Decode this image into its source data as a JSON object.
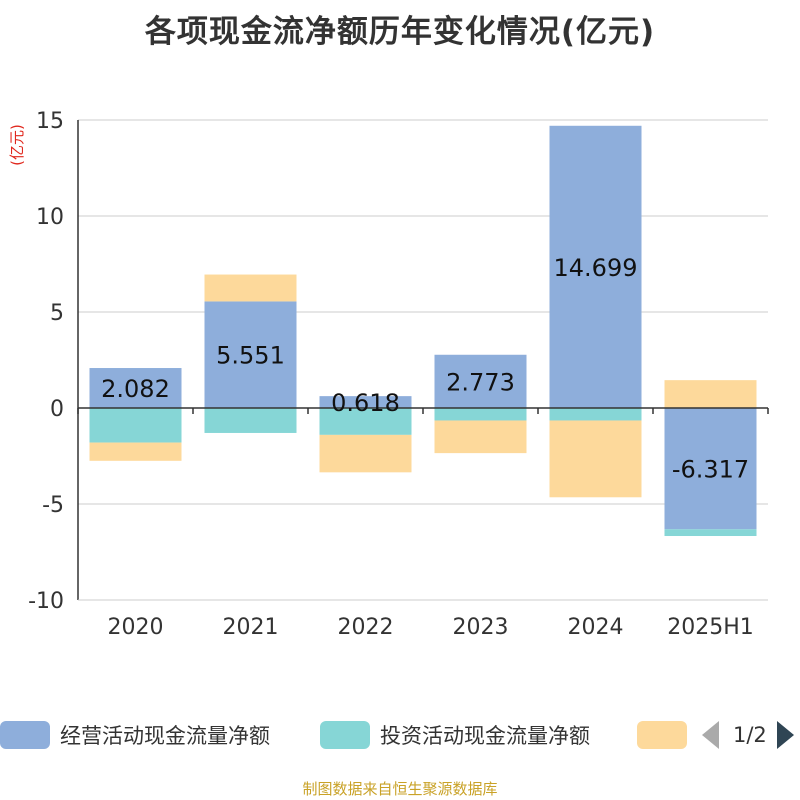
{
  "title": "各项现金流净额历年变化情况(亿元)",
  "source": "制图数据来自恒生聚源数据库",
  "pager": {
    "text": "1/2"
  },
  "chart_data": {
    "type": "bar",
    "stacked": true,
    "categories": [
      "2020",
      "2021",
      "2022",
      "2023",
      "2024",
      "2025H1"
    ],
    "ylabel": "(亿元)",
    "ylim": [
      -10,
      15
    ],
    "yticks": [
      15,
      10,
      5,
      0,
      -5,
      -10
    ],
    "grid": true,
    "legend_position": "bottom",
    "series": [
      {
        "name": "经营活动现金流量净额",
        "color": "#8eaedb",
        "values": [
          2.082,
          5.551,
          0.618,
          2.773,
          14.699,
          -6.317
        ],
        "show_labels": true
      },
      {
        "name": "投资活动现金流量净额",
        "color": "#86d6d6",
        "values": [
          -1.8,
          -1.3,
          -1.4,
          -0.65,
          -0.65,
          -0.35
        ],
        "show_labels": false
      },
      {
        "name": "",
        "color": "#fdd99b",
        "values": [
          -0.95,
          1.4,
          -1.95,
          -1.7,
          -4.0,
          1.45
        ],
        "show_labels": false
      }
    ]
  }
}
